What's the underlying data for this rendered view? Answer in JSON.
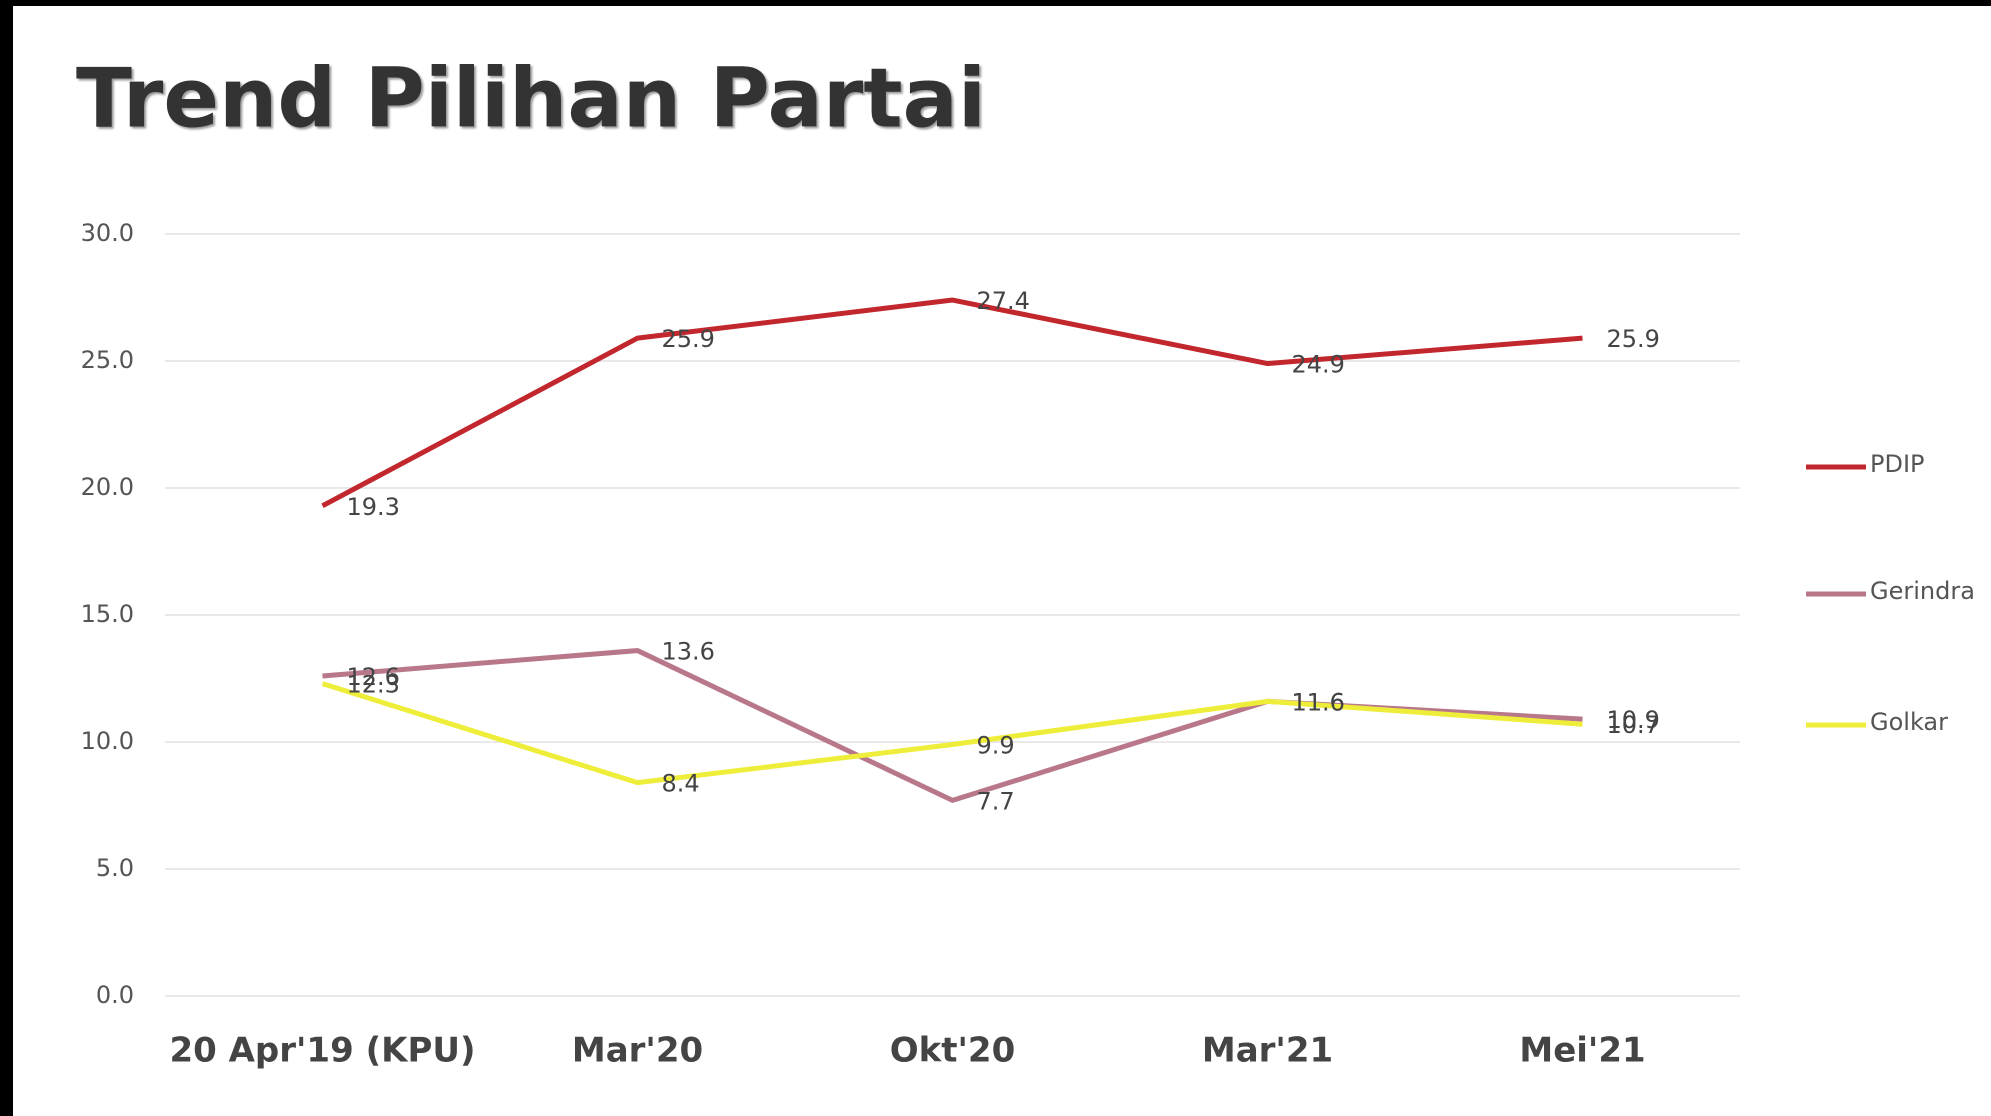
{
  "chart_data": {
    "type": "line",
    "title": "Trend Pilihan Partai",
    "categories": [
      "20 Apr'19 (KPU)",
      "Mar'20",
      "Okt'20",
      "Mar'21",
      "Mei'21"
    ],
    "series": [
      {
        "name": "PDIP",
        "color": "#c1272d",
        "values": [
          19.3,
          25.9,
          27.4,
          24.9,
          25.9
        ]
      },
      {
        "name": "Gerindra",
        "color": "#b8788a",
        "values": [
          12.6,
          13.6,
          7.7,
          11.6,
          10.9
        ]
      },
      {
        "name": "Golkar",
        "color": "#eeee3a",
        "values": [
          12.3,
          8.4,
          9.9,
          11.6,
          10.7
        ]
      }
    ],
    "ylim": [
      0,
      30
    ],
    "yticks": [
      {
        "value": 0,
        "label": "0.0"
      },
      {
        "value": 5,
        "label": "5.0"
      },
      {
        "value": 10,
        "label": "10.0"
      },
      {
        "value": 15,
        "label": "15.0"
      },
      {
        "value": 20,
        "label": "20.0"
      },
      {
        "value": 25,
        "label": "25.0"
      },
      {
        "value": 30,
        "label": "30.0"
      }
    ],
    "grid": true,
    "legend": "right"
  }
}
